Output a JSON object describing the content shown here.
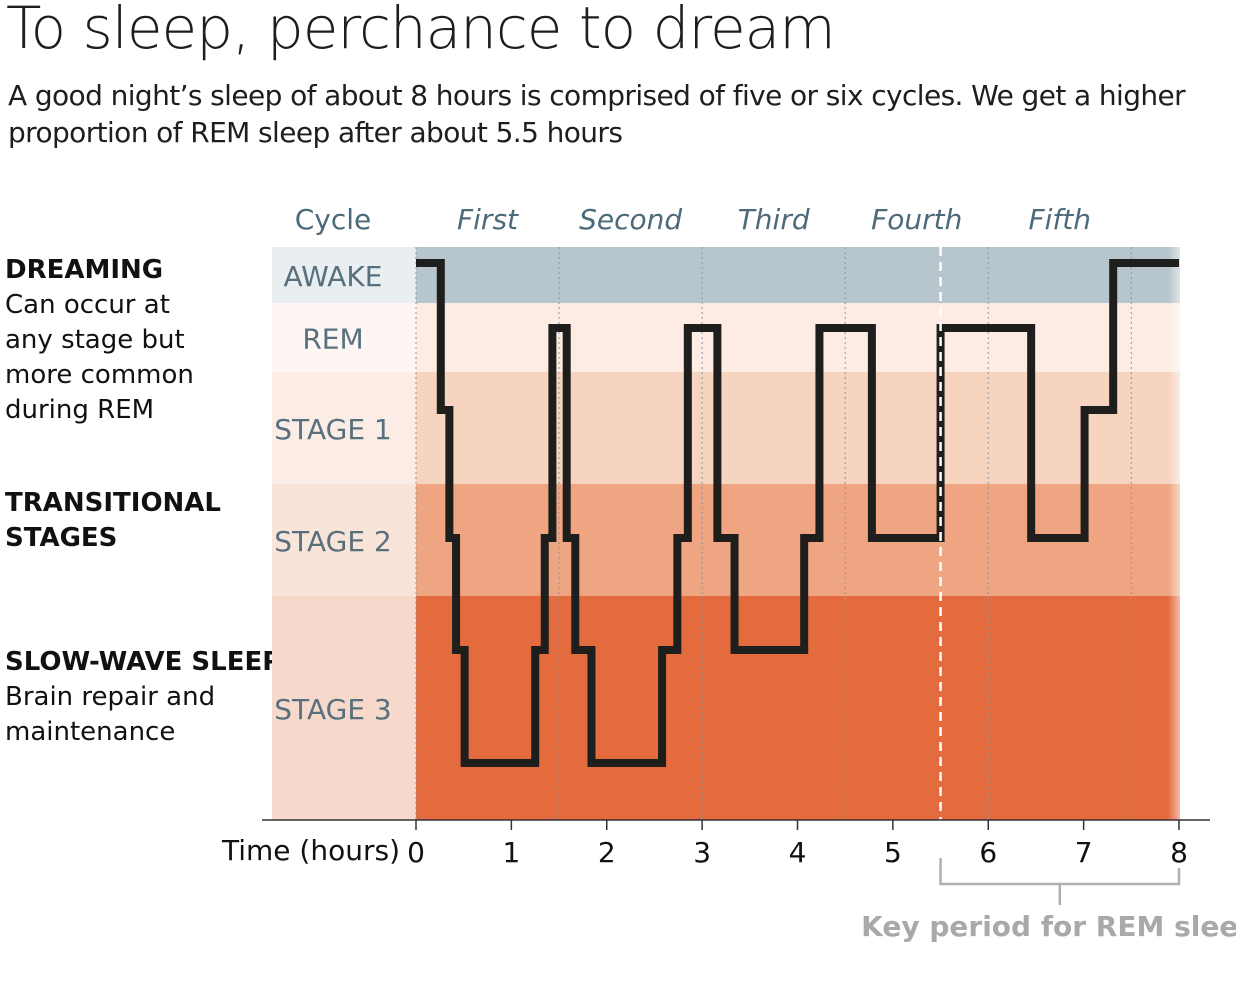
{
  "title": "To sleep, perchance to dream",
  "subtitle": "A good night’s sleep of about 8 hours is comprised of five or six cycles. We get a higher proportion of REM sleep after about 5.5 hours",
  "side_labels": [
    {
      "heading": "DREAMING",
      "text": "Can occur at any stage but more common during REM"
    },
    {
      "heading": "TRANSITIONAL STAGES",
      "text": ""
    },
    {
      "heading": "SLOW-WAVE SLEEP",
      "text": "Brain repair and maintenance"
    }
  ],
  "chart_data": {
    "type": "line",
    "step": true,
    "title": "To sleep, perchance to dream",
    "xlabel": "Time (hours)",
    "xlim": [
      0,
      8
    ],
    "xticks": [
      0,
      1,
      2,
      3,
      4,
      5,
      6,
      7,
      8
    ],
    "cycle_header": "Cycle",
    "cycles": [
      {
        "label": "First",
        "start": 0,
        "end": 1.5
      },
      {
        "label": "Second",
        "start": 1.5,
        "end": 3.0
      },
      {
        "label": "Third",
        "start": 3.0,
        "end": 4.5
      },
      {
        "label": "Fourth",
        "start": 4.5,
        "end": 6.0
      },
      {
        "label": "Fifth",
        "start": 6.0,
        "end": 7.5
      }
    ],
    "stages": [
      {
        "label": "AWAKE",
        "color": "#b7c5cc",
        "label_bg": "#e9eef0"
      },
      {
        "label": "REM",
        "color": "#fcece3",
        "label_bg": "#fdf6f2"
      },
      {
        "label": "STAGE 1",
        "color": "#f6d4bf",
        "label_bg": "#fbede5"
      },
      {
        "label": "STAGE 2",
        "color": "#efa581",
        "label_bg": "#f9e4d9"
      },
      {
        "label": "STAGE 3",
        "color": "#e46b3d",
        "label_bg": "#f7d9cb"
      }
    ],
    "depth_scale": "0 = Awake, 1 = REM, 2 = Stage 1, 3 = Stage 2, 4 = Stage 3 (light), 5 = Stage 3 (deep)",
    "hypnogram": [
      {
        "x": 0,
        "depth": 0
      },
      {
        "x": 0.26,
        "depth": 2
      },
      {
        "x": 0.35,
        "depth": 3
      },
      {
        "x": 0.42,
        "depth": 4
      },
      {
        "x": 0.51,
        "depth": 5
      },
      {
        "x": 1.25,
        "depth": 4
      },
      {
        "x": 1.35,
        "depth": 3
      },
      {
        "x": 1.43,
        "depth": 1
      },
      {
        "x": 1.58,
        "depth": 3
      },
      {
        "x": 1.67,
        "depth": 4
      },
      {
        "x": 1.84,
        "depth": 5
      },
      {
        "x": 2.58,
        "depth": 4
      },
      {
        "x": 2.74,
        "depth": 3
      },
      {
        "x": 2.85,
        "depth": 1
      },
      {
        "x": 3.16,
        "depth": 3
      },
      {
        "x": 3.34,
        "depth": 4
      },
      {
        "x": 4.07,
        "depth": 3
      },
      {
        "x": 4.23,
        "depth": 1
      },
      {
        "x": 4.78,
        "depth": 3
      },
      {
        "x": 5.5,
        "depth": 1
      },
      {
        "x": 6.45,
        "depth": 3
      },
      {
        "x": 7.01,
        "depth": 2
      },
      {
        "x": 7.31,
        "depth": 0
      },
      {
        "x": 8,
        "depth": 0
      }
    ],
    "rem_marker_x": 5.5,
    "annotation": {
      "label": "Key period for REM sleep",
      "start": 5.5,
      "end": 8
    }
  },
  "colors": {
    "line": "#1e1e1c",
    "cycle_text": "#4d6a7a",
    "stage_text": "#58707e",
    "annotation": "#a9a9a9"
  }
}
